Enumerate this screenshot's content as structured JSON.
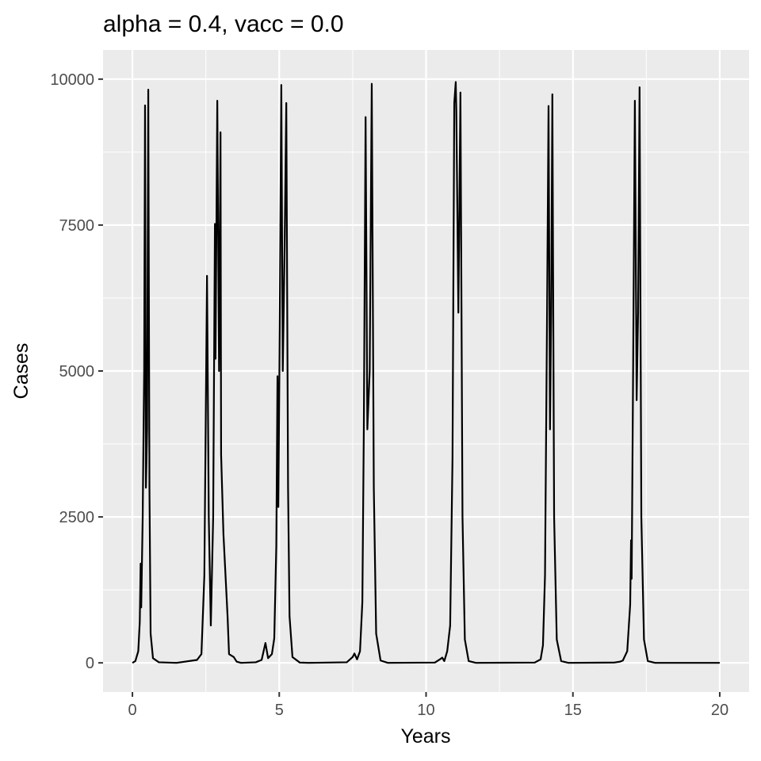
{
  "chart_data": {
    "type": "line",
    "title": "alpha = 0.4, vacc = 0.0",
    "xlabel": "Years",
    "ylabel": "Cases",
    "xlim": [
      -1,
      21
    ],
    "ylim": [
      -500,
      10500
    ],
    "xticks": [
      0,
      5,
      10,
      15,
      20
    ],
    "yticks": [
      0,
      2500,
      5000,
      7500,
      10000
    ],
    "grid": true,
    "series": [
      {
        "color": "#000000",
        "x": [
          0.0,
          0.1,
          0.2,
          0.25,
          0.28,
          0.3,
          0.35,
          0.4,
          0.43,
          0.46,
          0.5,
          0.54,
          0.58,
          0.62,
          0.7,
          0.9,
          1.5,
          2.2,
          2.35,
          2.45,
          2.54,
          2.6,
          2.67,
          2.75,
          2.81,
          2.83,
          2.89,
          2.95,
          3.0,
          3.02,
          3.1,
          3.2,
          3.24,
          3.29,
          3.45,
          3.55,
          3.7,
          4.2,
          4.4,
          4.53,
          4.62,
          4.75,
          4.83,
          4.9,
          4.94,
          4.97,
          5.02,
          5.07,
          5.12,
          5.18,
          5.24,
          5.3,
          5.35,
          5.45,
          5.7,
          6.0,
          7.3,
          7.5,
          7.56,
          7.65,
          7.75,
          7.83,
          7.88,
          7.94,
          8.0,
          8.08,
          8.15,
          8.22,
          8.3,
          8.45,
          8.7,
          10.3,
          10.5,
          10.55,
          10.62,
          10.72,
          10.82,
          10.9,
          10.96,
          11.01,
          11.03,
          11.1,
          11.17,
          11.24,
          11.32,
          11.45,
          11.7,
          13.7,
          13.9,
          13.98,
          14.05,
          14.12,
          14.17,
          14.22,
          14.26,
          14.3,
          14.36,
          14.45,
          14.6,
          14.85,
          16.4,
          16.6,
          16.7,
          16.85,
          16.95,
          16.98,
          17.0,
          17.05,
          17.11,
          17.17,
          17.22,
          17.27,
          17.33,
          17.42,
          17.55,
          17.8,
          20.0
        ],
        "values": [
          0,
          30,
          200,
          700,
          1700,
          950,
          2500,
          5000,
          9550,
          3000,
          4000,
          9820,
          3000,
          500,
          80,
          10,
          0,
          50,
          150,
          1500,
          6630,
          2500,
          640,
          2500,
          7520,
          5210,
          9630,
          5000,
          9090,
          3570,
          2200,
          1200,
          800,
          150,
          100,
          20,
          0,
          10,
          50,
          340,
          80,
          150,
          420,
          2000,
          4910,
          2670,
          6000,
          9900,
          5000,
          7000,
          9590,
          3000,
          800,
          100,
          5,
          0,
          10,
          100,
          160,
          60,
          200,
          1040,
          4000,
          9350,
          4000,
          5000,
          9920,
          3000,
          500,
          40,
          0,
          5,
          70,
          90,
          30,
          200,
          640,
          3500,
          9590,
          9950,
          9460,
          6000,
          9770,
          2500,
          400,
          30,
          0,
          5,
          60,
          300,
          1500,
          6000,
          9540,
          4000,
          6000,
          9740,
          2500,
          400,
          30,
          0,
          5,
          20,
          40,
          200,
          1000,
          2100,
          1440,
          5000,
          9630,
          4500,
          6000,
          9860,
          2500,
          400,
          30,
          0,
          0
        ]
      }
    ]
  }
}
